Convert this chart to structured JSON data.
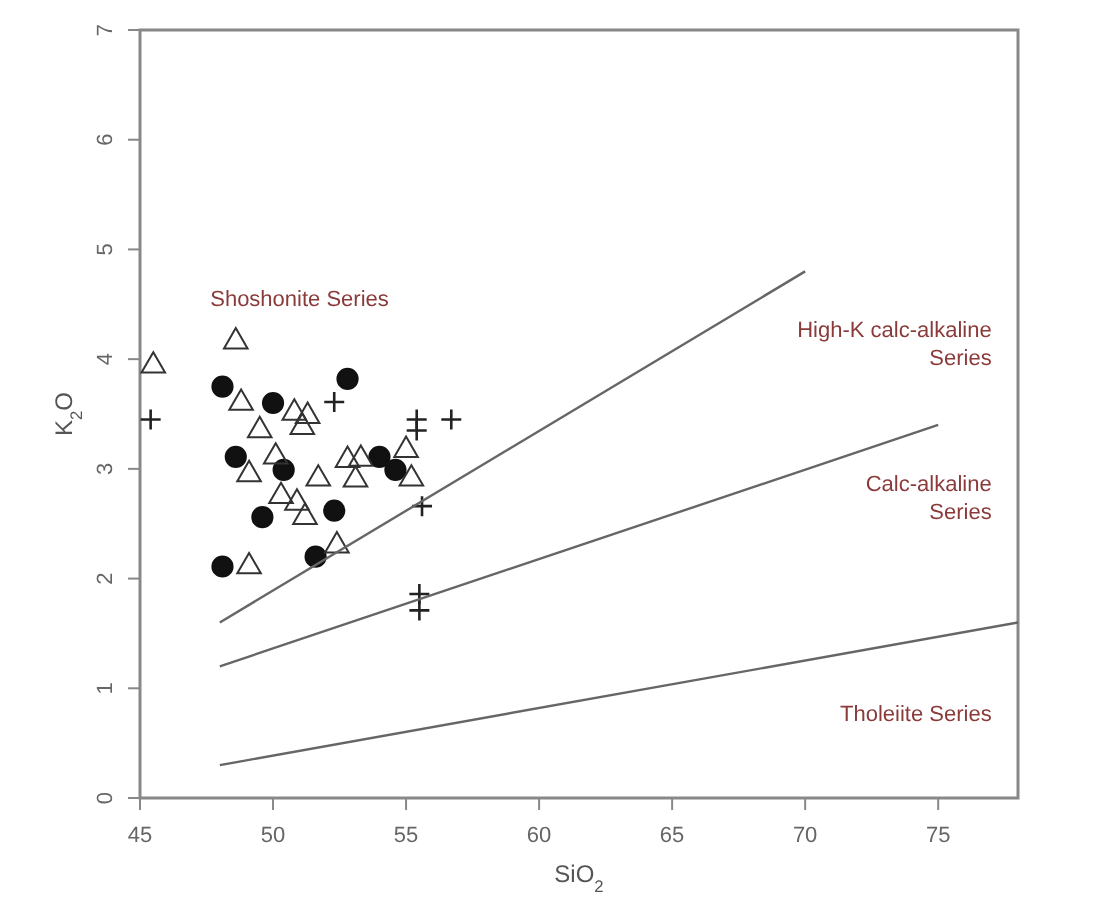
{
  "chart_data": {
    "type": "scatter",
    "xlabel": "SiO$_{2}$",
    "ylabel": "K$_{2}$O",
    "xlim": [
      45,
      78
    ],
    "ylim": [
      0,
      7
    ],
    "xticks": [
      45,
      50,
      55,
      60,
      65,
      70,
      75
    ],
    "yticks": [
      0,
      1,
      2,
      3,
      4,
      5,
      6,
      7
    ],
    "grid": false,
    "series": [
      {
        "marker": "circle",
        "color": "#111111",
        "x": [
          48.1,
          50.0,
          52.8,
          48.6,
          50.4,
          54.0,
          54.6,
          52.3,
          49.6,
          51.6,
          48.1
        ],
        "values": [
          3.75,
          3.6,
          3.82,
          3.11,
          2.99,
          3.11,
          2.99,
          2.62,
          2.56,
          2.2,
          2.11
        ]
      },
      {
        "marker": "triangle",
        "color": "#333333",
        "x": [
          48.6,
          45.5,
          48.8,
          49.5,
          50.8,
          51.3,
          51.1,
          49.1,
          50.1,
          51.7,
          52.8,
          53.3,
          53.1,
          50.3,
          50.9,
          51.2,
          52.4,
          49.1,
          55.2,
          55.0
        ],
        "values": [
          4.16,
          3.94,
          3.6,
          3.35,
          3.51,
          3.48,
          3.38,
          2.95,
          3.11,
          2.91,
          3.08,
          3.09,
          2.9,
          2.75,
          2.69,
          2.56,
          2.3,
          2.11,
          2.91,
          3.17
        ]
      },
      {
        "marker": "cross",
        "color": "#222222",
        "x": [
          45.4,
          52.3,
          55.4,
          55.4,
          55.6,
          55.5,
          55.5,
          56.7
        ],
        "values": [
          3.45,
          3.61,
          3.45,
          3.35,
          2.66,
          1.86,
          1.71,
          3.45
        ]
      },
      {
        "type": "line",
        "marker": "none",
        "line_style": "solid",
        "color": "#666666",
        "x": [
          48,
          70
        ],
        "values": [
          1.6,
          4.8
        ]
      },
      {
        "type": "line",
        "marker": "none",
        "line_style": "solid",
        "color": "#666666",
        "x": [
          48,
          75
        ],
        "values": [
          1.2,
          3.4
        ]
      },
      {
        "type": "line",
        "marker": "none",
        "line_style": "solid",
        "color": "#666666",
        "x": [
          48,
          78
        ],
        "values": [
          0.3,
          1.6
        ]
      }
    ],
    "annotations": [
      "Shoshonite Series",
      "High-K calc-alkaline\nSeries",
      "Calc-alkaline\nSeries",
      "Tholeiite Series"
    ]
  }
}
